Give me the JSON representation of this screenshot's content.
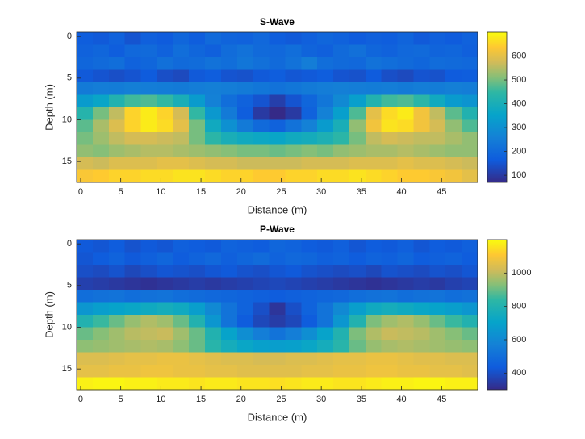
{
  "chart_data": [
    {
      "type": "heatmap",
      "title": "S-Wave",
      "xlabel": "Distance (m)",
      "ylabel": "Depth (m)",
      "colormap": "parula",
      "x": [
        0.5,
        2.5,
        4.5,
        6.5,
        8.5,
        10.5,
        12.5,
        14.5,
        16.5,
        18.5,
        20.5,
        22.5,
        24.5,
        26.5,
        28.5,
        30.5,
        32.5,
        34.5,
        36.5,
        38.5,
        40.5,
        42.5,
        44.5,
        46.5,
        48.5
      ],
      "y": [
        0.25,
        1.75,
        3.25,
        4.75,
        6.25,
        7.75,
        9.25,
        10.75,
        12.25,
        13.75,
        15.25,
        16.75
      ],
      "z": [
        [
          170,
          160,
          180,
          150,
          175,
          165,
          190,
          170,
          200,
          185,
          180,
          195,
          170,
          160,
          175,
          190,
          180,
          165,
          175,
          170,
          185,
          160,
          175,
          165,
          180
        ],
        [
          180,
          190,
          170,
          195,
          200,
          180,
          210,
          190,
          175,
          205,
          220,
          200,
          195,
          210,
          185,
          175,
          200,
          215,
          190,
          180,
          195,
          200,
          185,
          190,
          175
        ],
        [
          190,
          200,
          210,
          180,
          190,
          215,
          200,
          205,
          220,
          210,
          230,
          215,
          200,
          220,
          250,
          210,
          200,
          195,
          220,
          210,
          200,
          190,
          205,
          200,
          195
        ],
        [
          160,
          150,
          140,
          150,
          165,
          140,
          130,
          160,
          170,
          150,
          145,
          160,
          170,
          155,
          160,
          170,
          150,
          145,
          165,
          140,
          130,
          150,
          145,
          165,
          170
        ],
        [
          240,
          250,
          245,
          255,
          250,
          245,
          240,
          250,
          255,
          250,
          240,
          230,
          220,
          230,
          240,
          250,
          255,
          250,
          245,
          250,
          240,
          250,
          245,
          255,
          250
        ],
        [
          330,
          360,
          420,
          460,
          470,
          450,
          400,
          330,
          260,
          210,
          180,
          150,
          110,
          150,
          190,
          230,
          280,
          340,
          420,
          460,
          470,
          440,
          380,
          330,
          310
        ],
        [
          430,
          500,
          560,
          650,
          680,
          650,
          580,
          450,
          320,
          240,
          170,
          100,
          70,
          100,
          180,
          260,
          340,
          470,
          600,
          660,
          680,
          620,
          560,
          480,
          420
        ],
        [
          480,
          540,
          590,
          650,
          680,
          660,
          600,
          500,
          380,
          300,
          240,
          200,
          180,
          220,
          260,
          330,
          400,
          520,
          620,
          670,
          660,
          620,
          580,
          520,
          470
        ],
        [
          500,
          530,
          560,
          580,
          580,
          570,
          560,
          500,
          440,
          400,
          380,
          370,
          360,
          380,
          390,
          410,
          440,
          500,
          560,
          580,
          570,
          560,
          560,
          540,
          520
        ],
        [
          520,
          510,
          530,
          540,
          550,
          550,
          540,
          530,
          520,
          510,
          500,
          500,
          490,
          500,
          510,
          500,
          520,
          530,
          540,
          540,
          550,
          540,
          530,
          520,
          520
        ],
        [
          580,
          570,
          590,
          590,
          590,
          600,
          600,
          590,
          580,
          580,
          570,
          570,
          570,
          570,
          580,
          580,
          580,
          590,
          590,
          590,
          600,
          590,
          590,
          580,
          570
        ],
        [
          630,
          640,
          650,
          650,
          660,
          660,
          670,
          670,
          660,
          650,
          650,
          640,
          640,
          650,
          650,
          660,
          660,
          670,
          660,
          650,
          640,
          640,
          630,
          620,
          600
        ]
      ],
      "xlim": [
        -0.5,
        49.5
      ],
      "ylim": [
        -0.5,
        17.5
      ],
      "yreverse": true,
      "xticks": [
        0,
        5,
        10,
        15,
        20,
        25,
        30,
        35,
        40,
        45
      ],
      "yticks": [
        0,
        5,
        10,
        15
      ],
      "clim": [
        70,
        700
      ],
      "cticks": [
        100,
        200,
        300,
        400,
        500,
        600
      ]
    },
    {
      "type": "heatmap",
      "title": "P-Wave",
      "xlabel": "Distance (m)",
      "ylabel": "Depth (m)",
      "colormap": "parula",
      "x": [
        0.5,
        2.5,
        4.5,
        6.5,
        8.5,
        10.5,
        12.5,
        14.5,
        16.5,
        18.5,
        20.5,
        22.5,
        24.5,
        26.5,
        28.5,
        30.5,
        32.5,
        34.5,
        36.5,
        38.5,
        40.5,
        42.5,
        44.5,
        46.5,
        48.5
      ],
      "y": [
        0.25,
        1.75,
        3.25,
        4.75,
        6.25,
        7.75,
        9.25,
        10.75,
        12.25,
        13.75,
        15.25,
        16.75
      ],
      "z": [
        [
          430,
          420,
          440,
          410,
          430,
          420,
          450,
          440,
          430,
          460,
          450,
          440,
          470,
          460,
          440,
          430,
          450,
          420,
          440,
          430,
          450,
          420,
          440,
          430,
          450
        ],
        [
          420,
          440,
          460,
          430,
          450,
          470,
          440,
          460,
          480,
          450,
          470,
          490,
          460,
          480,
          470,
          450,
          460,
          440,
          460,
          450,
          470,
          440,
          450,
          460,
          440
        ],
        [
          400,
          390,
          410,
          380,
          400,
          420,
          410,
          400,
          420,
          430,
          410,
          400,
          420,
          430,
          410,
          400,
          390,
          400,
          380,
          410,
          400,
          390,
          410,
          400,
          420
        ],
        [
          360,
          350,
          340,
          330,
          320,
          330,
          340,
          350,
          340,
          350,
          360,
          370,
          380,
          370,
          360,
          350,
          340,
          330,
          320,
          330,
          340,
          350,
          340,
          360,
          370
        ],
        [
          500,
          510,
          520,
          500,
          510,
          520,
          500,
          490,
          480,
          470,
          460,
          450,
          440,
          450,
          460,
          470,
          480,
          500,
          510,
          520,
          500,
          510,
          520,
          500,
          510
        ],
        [
          650,
          680,
          700,
          720,
          740,
          760,
          740,
          680,
          600,
          520,
          460,
          400,
          330,
          400,
          460,
          520,
          600,
          680,
          740,
          760,
          740,
          720,
          700,
          680,
          650
        ],
        [
          800,
          850,
          900,
          950,
          980,
          960,
          900,
          800,
          650,
          520,
          440,
          380,
          350,
          380,
          440,
          520,
          650,
          800,
          920,
          960,
          980,
          950,
          900,
          850,
          800
        ],
        [
          900,
          930,
          960,
          990,
          1000,
          1010,
          960,
          900,
          800,
          700,
          620,
          560,
          520,
          560,
          620,
          700,
          800,
          920,
          980,
          1010,
          1000,
          990,
          960,
          930,
          900
        ],
        [
          940,
          950,
          960,
          970,
          980,
          970,
          940,
          900,
          820,
          760,
          720,
          690,
          680,
          690,
          720,
          760,
          820,
          900,
          950,
          970,
          980,
          970,
          960,
          950,
          940
        ],
        [
          1040,
          1040,
          1050,
          1060,
          1060,
          1070,
          1070,
          1060,
          1050,
          1040,
          1040,
          1030,
          1030,
          1040,
          1040,
          1050,
          1060,
          1060,
          1070,
          1070,
          1060,
          1050,
          1050,
          1040,
          1040
        ],
        [
          1060,
          1060,
          1070,
          1070,
          1080,
          1080,
          1070,
          1070,
          1060,
          1060,
          1050,
          1050,
          1050,
          1050,
          1060,
          1060,
          1070,
          1070,
          1080,
          1080,
          1070,
          1070,
          1060,
          1060,
          1050
        ],
        [
          1180,
          1190,
          1190,
          1180,
          1180,
          1170,
          1170,
          1160,
          1170,
          1170,
          1160,
          1160,
          1150,
          1160,
          1170,
          1170,
          1160,
          1160,
          1170,
          1180,
          1180,
          1190,
          1190,
          1180,
          1180
        ]
      ],
      "xlim": [
        -0.5,
        49.5
      ],
      "ylim": [
        -0.5,
        17.5
      ],
      "yreverse": true,
      "xticks": [
        0,
        5,
        10,
        15,
        20,
        25,
        30,
        35,
        40,
        45
      ],
      "yticks": [
        0,
        5,
        10,
        15
      ],
      "clim": [
        300,
        1200
      ],
      "cticks": [
        400,
        600,
        800,
        1000
      ]
    }
  ]
}
